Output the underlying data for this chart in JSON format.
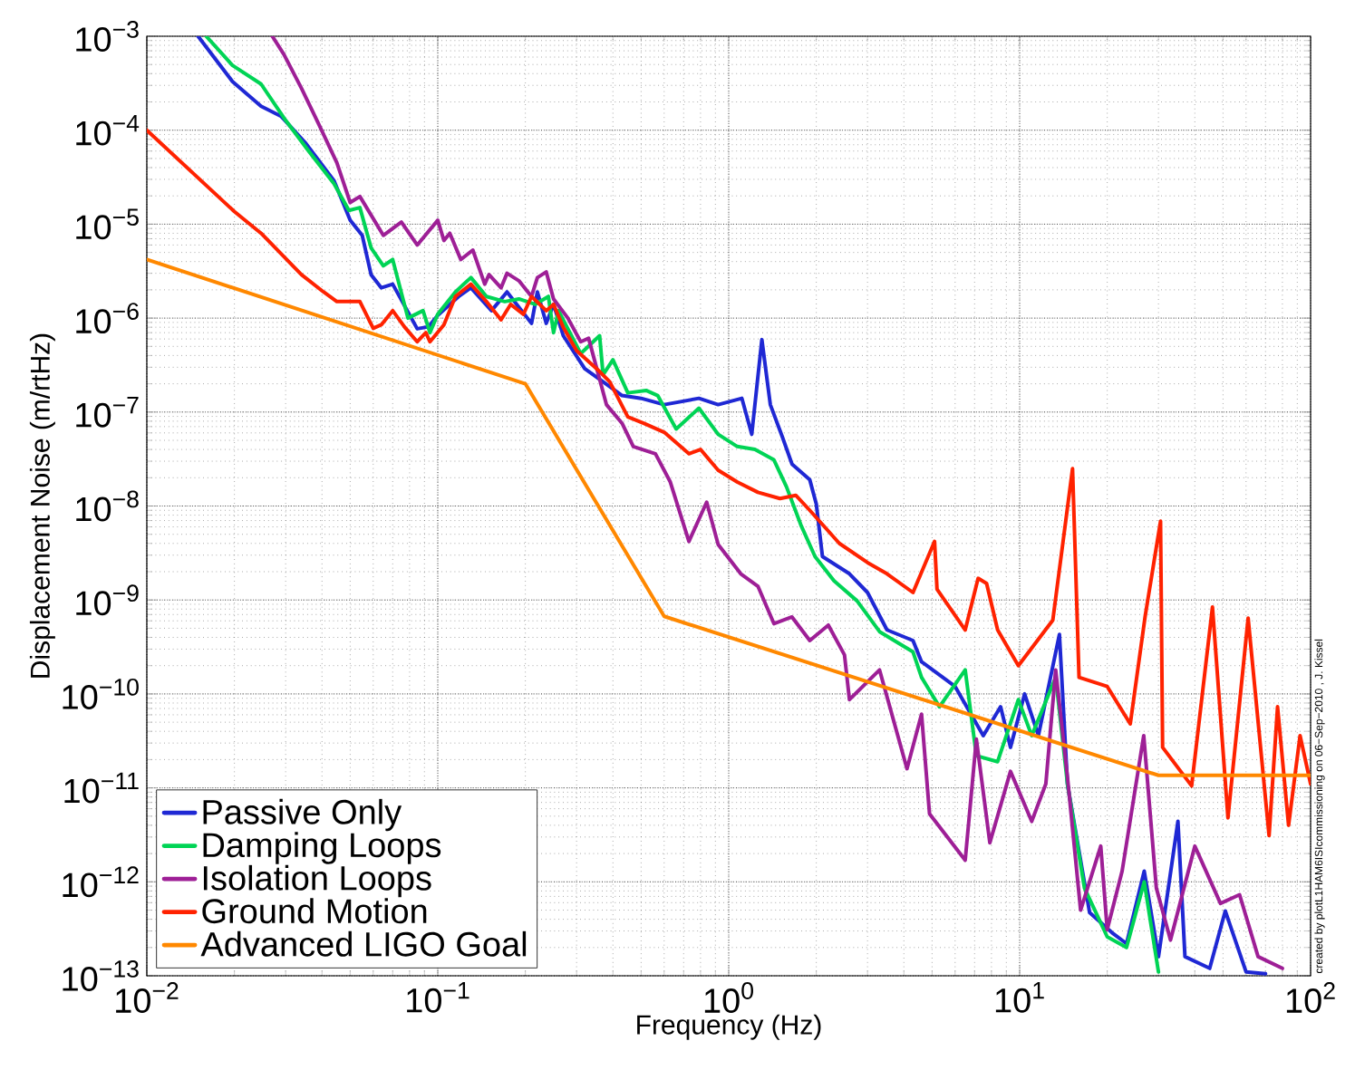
{
  "chart_data": {
    "type": "line",
    "xlabel": "Frequency (Hz)",
    "ylabel": "Displacement Noise (m/rtHz)",
    "log": "xy",
    "grid": true,
    "legend": "bottom left",
    "marker": "none",
    "line_style": "solid",
    "xlim": [
      0.01,
      100
    ],
    "ylim": [
      1e-13,
      0.001
    ],
    "xticks": [
      {
        "value": 0.01,
        "label": "10$^{−2}$"
      },
      {
        "value": 0.1,
        "label": "10$^{−1}$"
      },
      {
        "value": 1,
        "label": "10$^{0}$"
      },
      {
        "value": 10,
        "label": "10$^{1}$"
      },
      {
        "value": 100,
        "label": "10$^{2}$"
      }
    ],
    "yticks": [
      {
        "value": 1e-13,
        "label": "10$^{−13}$"
      },
      {
        "value": 1e-12,
        "label": "10$^{−12}$"
      },
      {
        "value": 1e-11,
        "label": "10$^{−11}$"
      },
      {
        "value": 1e-10,
        "label": "10$^{−10}$"
      },
      {
        "value": 1e-09,
        "label": "10$^{−9}$"
      },
      {
        "value": 1e-08,
        "label": "10$^{−8}$"
      },
      {
        "value": 1e-07,
        "label": "10$^{−7}$"
      },
      {
        "value": 1e-06,
        "label": "10$^{−6}$"
      },
      {
        "value": 1e-05,
        "label": "10$^{−5}$"
      },
      {
        "value": 0.0001,
        "label": "10$^{−4}$"
      },
      {
        "value": 0.001,
        "label": "10$^{−3}$"
      }
    ],
    "annotations": [
      "created by plotL1HAM6ISIcommissioning on 06−Sep−2010 , J. Kissel"
    ],
    "series": [
      {
        "name": "Passive Only",
        "color": "#1f28d4",
        "x": [
          0.015,
          0.0197,
          0.0247,
          0.029,
          0.035,
          0.044,
          0.05,
          0.055,
          0.059,
          0.064,
          0.07,
          0.085,
          0.093,
          0.1,
          0.118,
          0.13,
          0.153,
          0.173,
          0.21,
          0.22,
          0.236,
          0.25,
          0.27,
          0.32,
          0.37,
          0.43,
          0.5,
          0.6,
          0.79,
          0.92,
          1.11,
          1.2,
          1.3,
          1.39,
          1.53,
          1.65,
          1.9,
          2.0,
          2.1,
          2.6,
          3.0,
          3.5,
          4.3,
          4.6,
          6.0,
          7.5,
          8.6,
          9.3,
          10.4,
          11.6,
          13.7,
          14.6,
          17.4,
          21,
          23.3,
          26.8,
          30,
          35,
          37,
          45,
          50.9,
          60,
          70
        ],
        "values": [
          0.001,
          0.00033,
          0.00018,
          0.00014,
          7.4e-05,
          2.9e-05,
          1.1e-05,
          7.6e-06,
          2.9e-06,
          2.1e-06,
          2.3e-06,
          7.7e-07,
          8.1e-07,
          1.07e-06,
          1.7e-06,
          2.1e-06,
          1.2e-06,
          1.9e-06,
          8.8e-07,
          1.9e-06,
          8.8e-07,
          1.4e-06,
          6.5e-07,
          2.9e-07,
          2.1e-07,
          1.5e-07,
          1.4e-07,
          1.2e-07,
          1.4e-07,
          1.2e-07,
          1.4e-07,
          5.8e-08,
          5.9e-07,
          1.2e-07,
          5.4e-08,
          2.8e-08,
          1.9e-08,
          1.05e-08,
          2.9e-09,
          1.9e-09,
          1.2e-09,
          4.8e-10,
          3.7e-10,
          2.2e-10,
          1.2e-10,
          3.6e-11,
          7.3e-11,
          2.7e-11,
          1e-10,
          3.6e-11,
          4.3e-10,
          1.1e-11,
          4.7e-13,
          2.8e-13,
          2.2e-13,
          1.3e-12,
          1.6e-13,
          4.4e-12,
          1.6e-13,
          1.2e-13,
          4.9e-13,
          1.1e-13,
          1.05e-13
        ]
      },
      {
        "name": "Damping Loops",
        "color": "#00d455",
        "x": [
          0.016,
          0.0197,
          0.0247,
          0.0296,
          0.036,
          0.044,
          0.0495,
          0.054,
          0.059,
          0.065,
          0.07,
          0.079,
          0.089,
          0.094,
          0.1,
          0.115,
          0.13,
          0.147,
          0.17,
          0.19,
          0.216,
          0.24,
          0.25,
          0.26,
          0.31,
          0.36,
          0.37,
          0.4,
          0.45,
          0.52,
          0.57,
          0.66,
          0.79,
          0.92,
          1.07,
          1.23,
          1.43,
          1.58,
          1.77,
          1.98,
          2.3,
          2.76,
          3.3,
          4.3,
          4.6,
          5.3,
          6.5,
          7.1,
          8.4,
          9.9,
          11,
          13.3,
          14.6,
          16.7,
          20,
          23.3,
          26.8,
          30
        ],
        "values": [
          0.001,
          0.00049,
          0.00031,
          0.000135,
          6e-05,
          2.7e-05,
          1.4e-05,
          1.5e-05,
          5.6e-06,
          3.6e-06,
          4.2e-06,
          1e-06,
          1.2e-06,
          7e-07,
          1.1e-06,
          1.9e-06,
          2.7e-06,
          1.7e-06,
          1.5e-06,
          1.6e-06,
          1.4e-06,
          1.7e-06,
          7e-07,
          1.2e-06,
          4.2e-07,
          6.5e-07,
          2.5e-07,
          3.6e-07,
          1.6e-07,
          1.7e-07,
          1.5e-07,
          6.6e-08,
          1.1e-07,
          5.8e-08,
          4.3e-08,
          4e-08,
          3.1e-08,
          1.6e-08,
          6.3e-09,
          2.9e-09,
          1.6e-09,
          9.8e-10,
          4.6e-10,
          2.8e-10,
          1.5e-10,
          7.3e-11,
          1.8e-10,
          2.2e-11,
          1.9e-11,
          8.7e-11,
          3.6e-11,
          1.5e-10,
          1.1e-11,
          8.6e-13,
          2.6e-13,
          2e-13,
          1e-12,
          1.1e-13
        ]
      },
      {
        "name": "Isolation Loops",
        "color": "#9e1f96",
        "x": [
          0.027,
          0.0296,
          0.034,
          0.039,
          0.045,
          0.05,
          0.054,
          0.065,
          0.075,
          0.085,
          0.1,
          0.105,
          0.11,
          0.12,
          0.132,
          0.145,
          0.15,
          0.165,
          0.173,
          0.19,
          0.21,
          0.22,
          0.236,
          0.25,
          0.28,
          0.31,
          0.33,
          0.38,
          0.43,
          0.47,
          0.56,
          0.63,
          0.73,
          0.84,
          0.92,
          1.1,
          1.26,
          1.43,
          1.65,
          1.9,
          2.2,
          2.5,
          2.6,
          3.3,
          4.1,
          4.6,
          4.9,
          6.5,
          7.1,
          7.9,
          9.3,
          11,
          12.3,
          13.3,
          14.6,
          16.2,
          19,
          20,
          22.5,
          26.7,
          29.5,
          33,
          40,
          49,
          57,
          66,
          80
        ],
        "values": [
          0.001,
          0.00064,
          0.00028,
          0.000116,
          4.5e-05,
          1.7e-05,
          1.97e-05,
          7.6e-06,
          1.05e-05,
          6e-06,
          1.1e-05,
          6.7e-06,
          8e-06,
          4.2e-06,
          5.3e-06,
          2.3e-06,
          2.9e-06,
          2.1e-06,
          3e-06,
          2.5e-06,
          1.7e-06,
          2.7e-06,
          3.1e-06,
          1.6e-06,
          1e-06,
          5.6e-07,
          6.1e-07,
          1.2e-07,
          7.6e-08,
          4.3e-08,
          3.6e-08,
          1.8e-08,
          4.2e-09,
          1.1e-08,
          3.9e-09,
          1.9e-09,
          1.4e-09,
          5.6e-10,
          6.6e-10,
          3.7e-10,
          5.4e-10,
          2.6e-10,
          8.7e-11,
          1.8e-10,
          1.6e-11,
          6.1e-11,
          5.3e-12,
          1.7e-12,
          3.3e-11,
          2.6e-12,
          1.5e-11,
          4.4e-12,
          1.1e-11,
          1.8e-10,
          1.3e-11,
          5e-13,
          2.4e-12,
          3.1e-13,
          1.3e-12,
          3.6e-11,
          8.6e-13,
          2.4e-13,
          2.4e-12,
          5.9e-13,
          7.3e-13,
          1.6e-13,
          1.2e-13
        ]
      },
      {
        "name": "Ground Motion",
        "color": "#ff2200",
        "x": [
          0.01,
          0.02,
          0.0247,
          0.034,
          0.0405,
          0.045,
          0.054,
          0.06,
          0.064,
          0.07,
          0.077,
          0.085,
          0.091,
          0.094,
          0.105,
          0.115,
          0.13,
          0.147,
          0.165,
          0.178,
          0.197,
          0.21,
          0.236,
          0.25,
          0.27,
          0.3,
          0.36,
          0.39,
          0.45,
          0.51,
          0.6,
          0.73,
          0.8,
          0.92,
          1.07,
          1.26,
          1.5,
          1.7,
          1.9,
          2.4,
          3.0,
          3.5,
          4.3,
          5.1,
          5.2,
          6.5,
          7.2,
          7.7,
          8.4,
          9.9,
          13,
          15.2,
          16,
          20,
          24,
          27,
          30.5,
          31,
          39,
          46,
          52,
          61,
          72,
          77,
          84,
          92,
          100
        ],
        "values": [
          0.0001,
          1.36e-05,
          8e-06,
          2.9e-06,
          1.9e-06,
          1.5e-06,
          1.5e-06,
          7.8e-07,
          8.5e-07,
          1.2e-06,
          8e-07,
          5.6e-07,
          7e-07,
          5.6e-07,
          8.5e-07,
          1.7e-06,
          2.3e-06,
          1.5e-06,
          9.6e-07,
          1.4e-06,
          1.1e-06,
          1.7e-06,
          1.2e-06,
          1.4e-06,
          8e-07,
          4.5e-07,
          2.7e-07,
          2.1e-07,
          8.9e-08,
          7.6e-08,
          6.1e-08,
          3.6e-08,
          4e-08,
          2.4e-08,
          1.8e-08,
          1.4e-08,
          1.2e-08,
          1.3e-08,
          9e-09,
          4e-09,
          2.5e-09,
          1.9e-09,
          1.2e-09,
          4.2e-09,
          1.3e-09,
          4.8e-10,
          1.7e-09,
          1.5e-09,
          4.8e-10,
          2e-10,
          6.1e-10,
          2.5e-08,
          1.5e-10,
          1.2e-10,
          4.8e-11,
          6.7e-10,
          6.9e-09,
          2.7e-11,
          1.05e-11,
          8.4e-10,
          4.8e-12,
          6.4e-10,
          3.1e-12,
          7.3e-11,
          4e-12,
          3.6e-11,
          1.1e-11
        ]
      },
      {
        "name": "Advanced LIGO Goal",
        "color": "#ff8800",
        "x": [
          0.01,
          0.2,
          0.6,
          30,
          100
        ],
        "values": [
          4.2e-06,
          2e-07,
          6.7e-10,
          1.36e-11,
          1.36e-11
        ]
      }
    ]
  }
}
